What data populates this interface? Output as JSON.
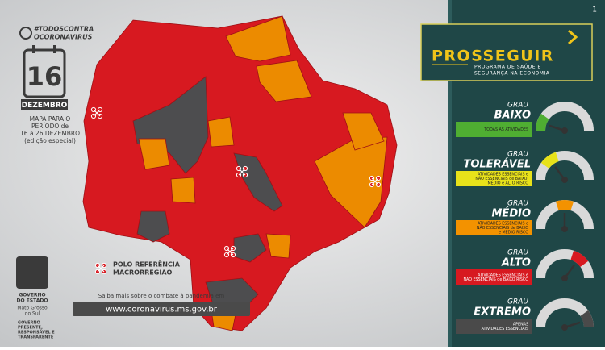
{
  "campaign": {
    "line1": "#TODOSCONTRA",
    "line2": "OCORONAVIRUS"
  },
  "calendar": {
    "day": "16",
    "month": "DEZEMBRO"
  },
  "period": {
    "line1": "MAPA PARA O",
    "line2": "PERÍODO de",
    "line3": "16 a 26 DEZEMBRO",
    "line4": "(edição especial)"
  },
  "legend": {
    "line1": "POLO REFERÊNCIA",
    "line2": "MACRORREGIÃO"
  },
  "website": {
    "intro": "Saiba mais sobre o combate à pandemia em",
    "url": "www.coronavirus.ms.gov.br"
  },
  "government": {
    "line1": "GOVERNO",
    "line2": "DO ESTADO",
    "line3": "Mato Grosso",
    "line4": "do Sul",
    "motto1": "GOVERNO",
    "motto2": "PRESENTE,",
    "motto3": "RESPONSÁVEL E",
    "motto4": "TRANSPARENTE"
  },
  "page_number": "1",
  "program": {
    "name": "PROSSEGUIR",
    "tagline1": "PROGRAMA DE SAÚDE E",
    "tagline2": "SEGURANÇA NA ECONOMIA"
  },
  "levels": [
    {
      "prefix": "GRAU",
      "name": "BAIXO",
      "description": [
        "TODAS AS ATIVIDADES"
      ],
      "color": "#4fae32"
    },
    {
      "prefix": "GRAU",
      "name": "TOLERÁVEL",
      "description": [
        "ATIVIDADES ESSENCIAIS e",
        "NÃO ESSENCIAIS de BAIXO,",
        "MÉDIO e ALTO RISCO"
      ],
      "color": "#e8e21a"
    },
    {
      "prefix": "GRAU",
      "name": "MÉDIO",
      "description": [
        "ATIVIDADES ESSENCIAIS e",
        "NÃO ESSENCIAIS de BAIXO",
        "e MÉDIO RISCO"
      ],
      "color": "#f39200"
    },
    {
      "prefix": "GRAU",
      "name": "ALTO",
      "description": [
        "ATIVIDADES ESSENCIAIS e",
        "NÃO ESSENCIAIS de BAIXO RISCO"
      ],
      "color": "#d71920"
    },
    {
      "prefix": "GRAU",
      "name": "EXTREMO",
      "description": [
        "APENAS",
        "ATIVIDADES ESSENCIAIS"
      ],
      "color": "#4a4a4a"
    }
  ]
}
